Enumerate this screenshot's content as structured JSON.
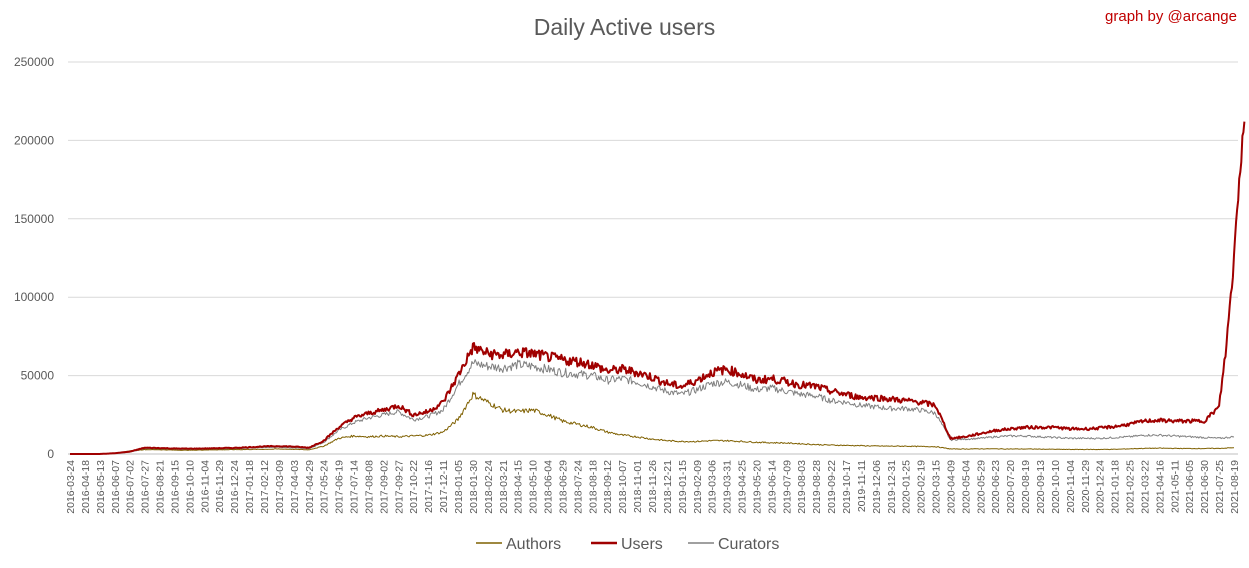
{
  "title": "Daily Active users",
  "credit": "graph by @arcange",
  "chart_data": {
    "type": "line",
    "title": "Daily Active users",
    "xlabel": "",
    "ylabel": "",
    "ylim": [
      0,
      250000
    ],
    "yticks": [
      0,
      50000,
      100000,
      150000,
      200000,
      250000
    ],
    "ytick_labels": [
      "0",
      "50000",
      "100000",
      "150000",
      "200000",
      "250000"
    ],
    "grid": true,
    "legend_position": "bottom",
    "xtick_labels": [
      "2016-03-24",
      "2016-04-18",
      "2016-05-13",
      "2016-06-07",
      "2016-07-02",
      "2016-07-27",
      "2016-08-21",
      "2016-09-15",
      "2016-10-10",
      "2016-11-04",
      "2016-11-29",
      "2016-12-24",
      "2017-01-18",
      "2017-02-12",
      "2017-03-09",
      "2017-04-03",
      "2017-04-29",
      "2017-05-24",
      "2017-06-19",
      "2017-07-14",
      "2017-08-08",
      "2017-09-02",
      "2017-09-27",
      "2017-10-22",
      "2017-11-16",
      "2017-12-11",
      "2018-01-05",
      "2018-01-30",
      "2018-02-24",
      "2018-03-21",
      "2018-04-15",
      "2018-05-10",
      "2018-06-04",
      "2018-06-29",
      "2018-07-24",
      "2018-08-18",
      "2018-09-12",
      "2018-10-07",
      "2018-11-01",
      "2018-11-26",
      "2018-12-21",
      "2019-01-15",
      "2019-02-09",
      "2019-03-06",
      "2019-03-31",
      "2019-04-25",
      "2019-05-20",
      "2019-06-14",
      "2019-07-09",
      "2019-08-03",
      "2019-08-28",
      "2019-09-22",
      "2019-10-17",
      "2019-11-11",
      "2019-12-06",
      "2019-12-31",
      "2020-01-25",
      "2020-02-19",
      "2020-03-15",
      "2020-04-09",
      "2020-05-04",
      "2020-05-29",
      "2020-06-23",
      "2020-07-20",
      "2020-08-19",
      "2020-09-13",
      "2020-10-10",
      "2020-11-04",
      "2020-11-29",
      "2020-12-24",
      "2021-01-18",
      "2021-02-25",
      "2021-03-22",
      "2021-04-16",
      "2021-05-11",
      "2021-06-05",
      "2021-06-30",
      "2021-07-25",
      "2021-08-19"
    ],
    "series": [
      {
        "name": "Authors",
        "color": "#7f6000",
        "points": [
          [
            0,
            0
          ],
          [
            1,
            0
          ],
          [
            2,
            0
          ],
          [
            3,
            300
          ],
          [
            4,
            2000
          ],
          [
            5,
            2800
          ],
          [
            6,
            2700
          ],
          [
            7,
            2500
          ],
          [
            8,
            2400
          ],
          [
            9,
            2600
          ],
          [
            10,
            2700
          ],
          [
            11,
            2800
          ],
          [
            12,
            2900
          ],
          [
            13,
            3000
          ],
          [
            14,
            3200
          ],
          [
            15,
            3000
          ],
          [
            16,
            2700
          ],
          [
            17,
            5000
          ],
          [
            18,
            10000
          ],
          [
            19,
            11500
          ],
          [
            20,
            11000
          ],
          [
            21,
            11500
          ],
          [
            22,
            11000
          ],
          [
            23,
            11500
          ],
          [
            24,
            12000
          ],
          [
            25,
            14000
          ],
          [
            26,
            22000
          ],
          [
            27,
            38000
          ],
          [
            28,
            33000
          ],
          [
            29,
            28000
          ],
          [
            30,
            27000
          ],
          [
            31,
            28000
          ],
          [
            32,
            25000
          ],
          [
            33,
            21000
          ],
          [
            34,
            19000
          ],
          [
            35,
            17000
          ],
          [
            36,
            14000
          ],
          [
            37,
            12000
          ],
          [
            38,
            11000
          ],
          [
            39,
            9500
          ],
          [
            40,
            8500
          ],
          [
            41,
            8000
          ],
          [
            42,
            8000
          ],
          [
            43,
            8500
          ],
          [
            44,
            8500
          ],
          [
            45,
            8000
          ],
          [
            46,
            7500
          ],
          [
            47,
            7200
          ],
          [
            48,
            7000
          ],
          [
            49,
            6500
          ],
          [
            50,
            6000
          ],
          [
            51,
            5700
          ],
          [
            52,
            5500
          ],
          [
            53,
            5300
          ],
          [
            54,
            5100
          ],
          [
            55,
            5000
          ],
          [
            56,
            5000
          ],
          [
            57,
            4800
          ],
          [
            58,
            4700
          ],
          [
            59,
            3200
          ],
          [
            60,
            3200
          ],
          [
            61,
            3300
          ],
          [
            62,
            3300
          ],
          [
            63,
            3200
          ],
          [
            64,
            3200
          ],
          [
            65,
            3100
          ],
          [
            66,
            3000
          ],
          [
            67,
            2900
          ],
          [
            68,
            2900
          ],
          [
            69,
            2900
          ],
          [
            70,
            3000
          ],
          [
            71,
            3300
          ],
          [
            72,
            3600
          ],
          [
            73,
            3700
          ],
          [
            74,
            3600
          ],
          [
            75,
            3500
          ],
          [
            76,
            3500
          ],
          [
            77,
            3600
          ],
          [
            78,
            4000
          ]
        ]
      },
      {
        "name": "Users",
        "color": "#a00000",
        "points": [
          [
            0,
            0
          ],
          [
            1,
            0
          ],
          [
            2,
            0
          ],
          [
            3,
            500
          ],
          [
            4,
            1500
          ],
          [
            5,
            4000
          ],
          [
            6,
            3800
          ],
          [
            7,
            3500
          ],
          [
            8,
            3400
          ],
          [
            9,
            3500
          ],
          [
            10,
            3700
          ],
          [
            11,
            3900
          ],
          [
            12,
            4300
          ],
          [
            13,
            4800
          ],
          [
            14,
            5000
          ],
          [
            15,
            4700
          ],
          [
            16,
            4000
          ],
          [
            17,
            8500
          ],
          [
            18,
            17000
          ],
          [
            19,
            23000
          ],
          [
            20,
            26000
          ],
          [
            21,
            28000
          ],
          [
            22,
            31000
          ],
          [
            23,
            25000
          ],
          [
            24,
            27000
          ],
          [
            25,
            33000
          ],
          [
            26,
            50000
          ],
          [
            27,
            68000
          ],
          [
            28,
            64000
          ],
          [
            29,
            63000
          ],
          [
            30,
            65000
          ],
          [
            31,
            64000
          ],
          [
            32,
            62000
          ],
          [
            33,
            60000
          ],
          [
            34,
            59000
          ],
          [
            35,
            57000
          ],
          [
            36,
            53000
          ],
          [
            37,
            54000
          ],
          [
            38,
            52000
          ],
          [
            39,
            49000
          ],
          [
            40,
            45000
          ],
          [
            41,
            43000
          ],
          [
            42,
            47000
          ],
          [
            43,
            52000
          ],
          [
            44,
            54000
          ],
          [
            45,
            51000
          ],
          [
            46,
            47000
          ],
          [
            47,
            48000
          ],
          [
            48,
            46000
          ],
          [
            49,
            44000
          ],
          [
            50,
            43000
          ],
          [
            51,
            40000
          ],
          [
            52,
            38000
          ],
          [
            53,
            36000
          ],
          [
            54,
            36000
          ],
          [
            55,
            35000
          ],
          [
            56,
            34000
          ],
          [
            57,
            33000
          ],
          [
            58,
            31000
          ],
          [
            59,
            10000
          ],
          [
            60,
            11000
          ],
          [
            61,
            13000
          ],
          [
            62,
            15000
          ],
          [
            63,
            16000
          ],
          [
            64,
            17000
          ],
          [
            65,
            17000
          ],
          [
            66,
            17000
          ],
          [
            67,
            16000
          ],
          [
            68,
            16000
          ],
          [
            69,
            16500
          ],
          [
            70,
            17500
          ],
          [
            71,
            19000
          ],
          [
            72,
            21000
          ],
          [
            73,
            21500
          ],
          [
            74,
            21000
          ],
          [
            75,
            21000
          ],
          [
            76,
            21000
          ],
          [
            77,
            30000
          ],
          [
            77.5,
            70000
          ],
          [
            78,
            125000
          ],
          [
            78.35,
            180000
          ],
          [
            78.7,
            212000
          ]
        ]
      },
      {
        "name": "Curators",
        "color": "#808080",
        "points": [
          [
            0,
            0
          ],
          [
            1,
            0
          ],
          [
            2,
            0
          ],
          [
            3,
            400
          ],
          [
            4,
            1200
          ],
          [
            5,
            3300
          ],
          [
            6,
            3100
          ],
          [
            7,
            2900
          ],
          [
            8,
            2800
          ],
          [
            9,
            2900
          ],
          [
            10,
            3100
          ],
          [
            11,
            3300
          ],
          [
            12,
            3700
          ],
          [
            13,
            4100
          ],
          [
            14,
            4300
          ],
          [
            15,
            4000
          ],
          [
            16,
            3400
          ],
          [
            17,
            7500
          ],
          [
            18,
            15000
          ],
          [
            19,
            20000
          ],
          [
            20,
            23000
          ],
          [
            21,
            25000
          ],
          [
            22,
            27000
          ],
          [
            23,
            22000
          ],
          [
            24,
            24000
          ],
          [
            25,
            28000
          ],
          [
            26,
            44000
          ],
          [
            27,
            58000
          ],
          [
            28,
            56000
          ],
          [
            29,
            55000
          ],
          [
            30,
            57000
          ],
          [
            31,
            56000
          ],
          [
            32,
            54000
          ],
          [
            33,
            52000
          ],
          [
            34,
            51000
          ],
          [
            35,
            50000
          ],
          [
            36,
            47000
          ],
          [
            37,
            48000
          ],
          [
            38,
            46000
          ],
          [
            39,
            43000
          ],
          [
            40,
            40000
          ],
          [
            41,
            38000
          ],
          [
            42,
            41000
          ],
          [
            43,
            45000
          ],
          [
            44,
            46000
          ],
          [
            45,
            44000
          ],
          [
            46,
            41000
          ],
          [
            47,
            42000
          ],
          [
            48,
            40000
          ],
          [
            49,
            38000
          ],
          [
            50,
            37000
          ],
          [
            51,
            34000
          ],
          [
            52,
            33000
          ],
          [
            53,
            31000
          ],
          [
            54,
            30000
          ],
          [
            55,
            29000
          ],
          [
            56,
            29000
          ],
          [
            57,
            28000
          ],
          [
            58,
            26000
          ],
          [
            59,
            9000
          ],
          [
            60,
            9500
          ],
          [
            61,
            10000
          ],
          [
            62,
            11000
          ],
          [
            63,
            11500
          ],
          [
            64,
            11500
          ],
          [
            65,
            11000
          ],
          [
            66,
            10500
          ],
          [
            67,
            10000
          ],
          [
            68,
            10000
          ],
          [
            69,
            10000
          ],
          [
            70,
            10500
          ],
          [
            71,
            11000
          ],
          [
            72,
            12000
          ],
          [
            73,
            12000
          ],
          [
            74,
            11500
          ],
          [
            75,
            11000
          ],
          [
            76,
            10500
          ],
          [
            77,
            10000
          ],
          [
            78,
            11000
          ]
        ]
      }
    ]
  }
}
